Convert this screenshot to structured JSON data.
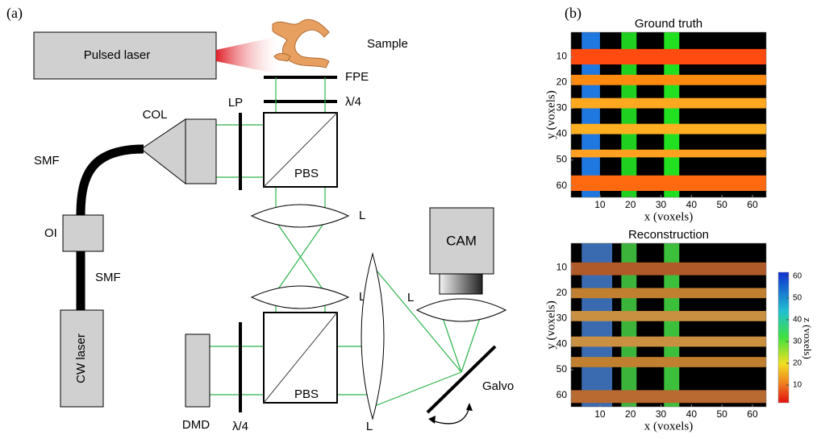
{
  "panel_a": {
    "label": "(a)",
    "pulsed_laser": "Pulsed laser",
    "sample": "Sample",
    "fpe": "FPE",
    "qwp_top": "λ/4",
    "lp": "LP",
    "col": "COL",
    "smf_top": "SMF",
    "pbs_top": "PBS",
    "lens_1": "L",
    "oi": "OI",
    "smf_bottom": "SMF",
    "lens_2": "L",
    "cam": "CAM",
    "lens_cam": "L",
    "cw_laser": "CW laser",
    "dmd": "DMD",
    "qwp_bottom": "λ/4",
    "pbs_bottom": "PBS",
    "lens_3": "L",
    "galvo": "Galvo"
  },
  "panel_b": {
    "label": "(b)",
    "plots": [
      {
        "title": "Ground truth",
        "xlabel": "x (voxels)",
        "ylabel": "y (voxels)",
        "xticks": [
          10,
          20,
          30,
          40,
          50,
          60
        ],
        "yticks": [
          10,
          20,
          30,
          40,
          50,
          60
        ]
      },
      {
        "title": "Reconstruction",
        "xlabel": "x (voxels)",
        "ylabel": "y (voxels)",
        "xticks": [
          10,
          20,
          30,
          40,
          50,
          60
        ],
        "yticks": [
          10,
          20,
          30,
          40,
          50,
          60
        ]
      }
    ],
    "colorbar": {
      "label": "z (voxels)",
      "ticks": [
        10,
        20,
        30,
        40,
        50,
        60
      ]
    }
  }
}
